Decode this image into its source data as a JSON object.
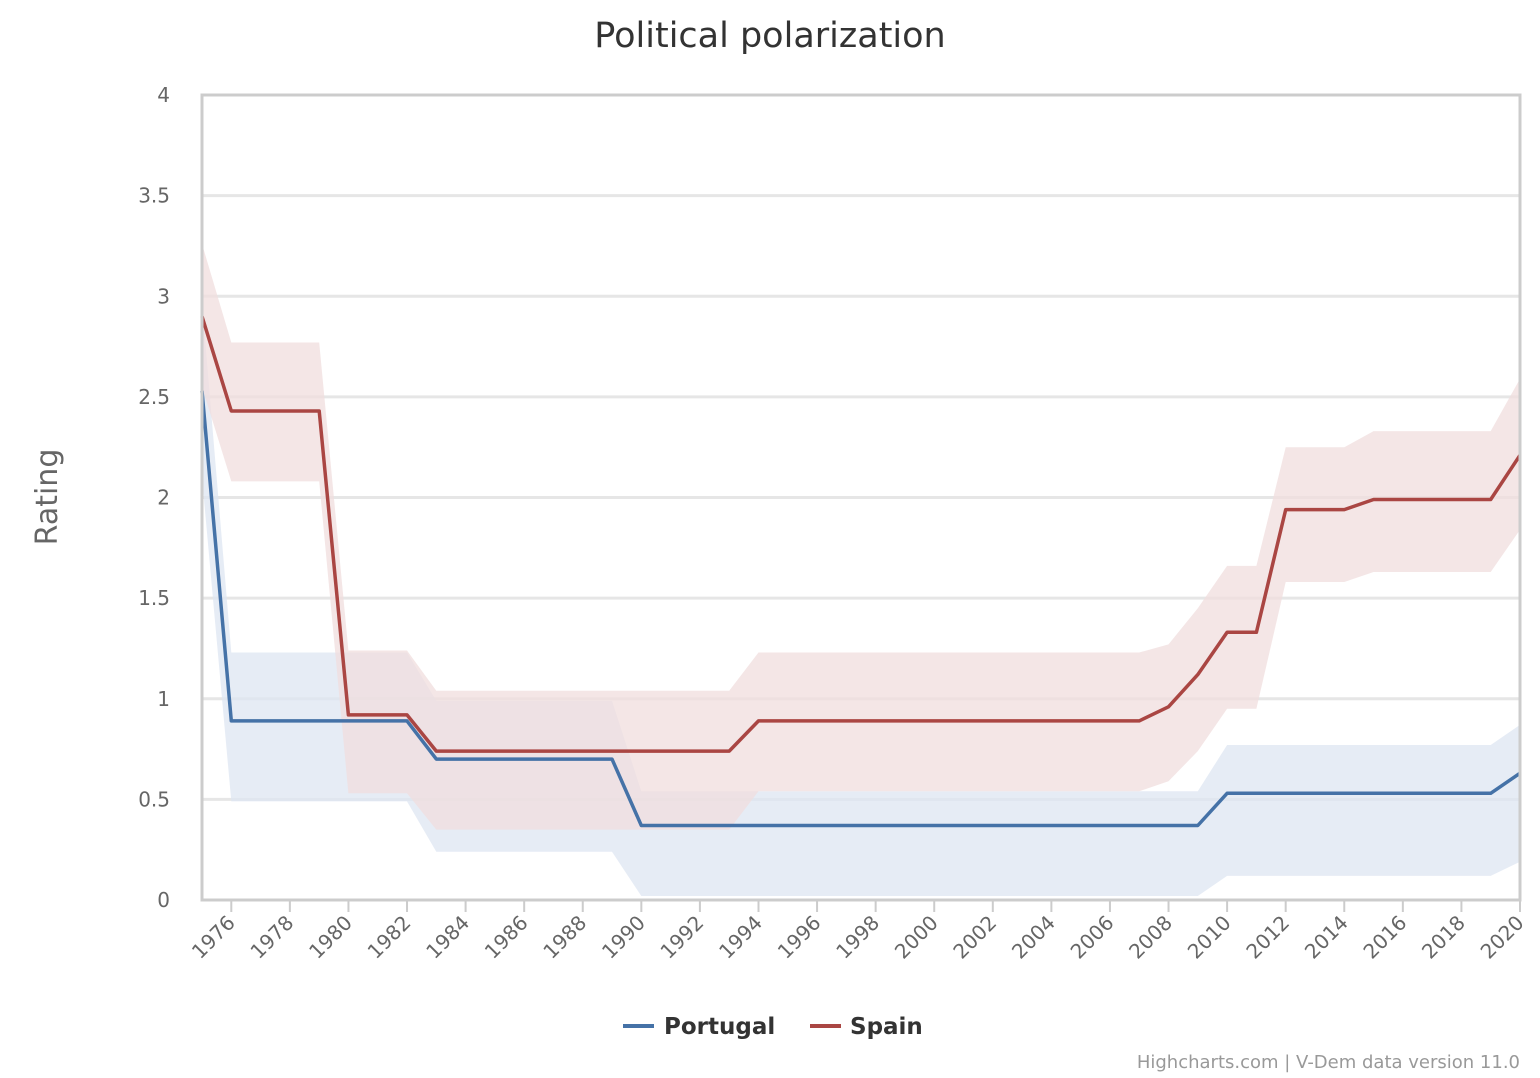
{
  "chart_data": {
    "type": "line",
    "title": "Political polarization",
    "ylabel": "Rating",
    "xlabel": "",
    "xlim": [
      1975,
      2020
    ],
    "ylim": [
      0,
      4
    ],
    "yticks": [
      0,
      0.5,
      1,
      1.5,
      2,
      2.5,
      3,
      3.5,
      4
    ],
    "xticks": [
      1976,
      1978,
      1980,
      1982,
      1984,
      1986,
      1988,
      1990,
      1992,
      1994,
      1996,
      1998,
      2000,
      2002,
      2004,
      2006,
      2008,
      2010,
      2012,
      2014,
      2016,
      2018,
      2020
    ],
    "grid": true,
    "legend": "bottom-center",
    "x": [
      1975,
      1976,
      1977,
      1978,
      1979,
      1980,
      1981,
      1982,
      1983,
      1984,
      1985,
      1986,
      1987,
      1988,
      1989,
      1990,
      1991,
      1992,
      1993,
      1994,
      1995,
      1996,
      1997,
      1998,
      1999,
      2000,
      2001,
      2002,
      2003,
      2004,
      2005,
      2006,
      2007,
      2008,
      2009,
      2010,
      2011,
      2012,
      2013,
      2014,
      2015,
      2016,
      2017,
      2018,
      2019,
      2020
    ],
    "series": [
      {
        "name": "Portugal",
        "color": "#4572a7",
        "band_color": "#dde6f1",
        "values": [
          2.53,
          0.89,
          0.89,
          0.89,
          0.89,
          0.89,
          0.89,
          0.89,
          0.7,
          0.7,
          0.7,
          0.7,
          0.7,
          0.7,
          0.7,
          0.37,
          0.37,
          0.37,
          0.37,
          0.37,
          0.37,
          0.37,
          0.37,
          0.37,
          0.37,
          0.37,
          0.37,
          0.37,
          0.37,
          0.37,
          0.37,
          0.37,
          0.37,
          0.37,
          0.37,
          0.53,
          0.53,
          0.53,
          0.53,
          0.53,
          0.53,
          0.53,
          0.53,
          0.53,
          0.53,
          0.63
        ],
        "lower": [
          2.1,
          0.49,
          0.49,
          0.49,
          0.49,
          0.49,
          0.49,
          0.49,
          0.24,
          0.24,
          0.24,
          0.24,
          0.24,
          0.24,
          0.24,
          0.02,
          0.02,
          0.02,
          0.02,
          0.02,
          0.02,
          0.02,
          0.02,
          0.02,
          0.02,
          0.02,
          0.02,
          0.02,
          0.02,
          0.02,
          0.02,
          0.02,
          0.02,
          0.02,
          0.02,
          0.12,
          0.12,
          0.12,
          0.12,
          0.12,
          0.12,
          0.12,
          0.12,
          0.12,
          0.12,
          0.19
        ],
        "upper": [
          2.97,
          1.23,
          1.23,
          1.23,
          1.23,
          1.23,
          1.23,
          1.23,
          0.99,
          0.99,
          0.99,
          0.99,
          0.99,
          0.99,
          0.99,
          0.54,
          0.54,
          0.54,
          0.54,
          0.54,
          0.54,
          0.54,
          0.54,
          0.54,
          0.54,
          0.54,
          0.54,
          0.54,
          0.54,
          0.54,
          0.54,
          0.54,
          0.54,
          0.54,
          0.54,
          0.77,
          0.77,
          0.77,
          0.77,
          0.77,
          0.77,
          0.77,
          0.77,
          0.77,
          0.77,
          0.87
        ]
      },
      {
        "name": "Spain",
        "color": "#aa4643",
        "band_color": "#f0dddd",
        "values": [
          2.9,
          2.43,
          2.43,
          2.43,
          2.43,
          0.92,
          0.92,
          0.92,
          0.74,
          0.74,
          0.74,
          0.74,
          0.74,
          0.74,
          0.74,
          0.74,
          0.74,
          0.74,
          0.74,
          0.89,
          0.89,
          0.89,
          0.89,
          0.89,
          0.89,
          0.89,
          0.89,
          0.89,
          0.89,
          0.89,
          0.89,
          0.89,
          0.89,
          0.96,
          1.12,
          1.33,
          1.33,
          1.94,
          1.94,
          1.94,
          1.99,
          1.99,
          1.99,
          1.99,
          1.99,
          2.21
        ],
        "lower": [
          2.55,
          2.08,
          2.08,
          2.08,
          2.08,
          0.53,
          0.53,
          0.53,
          0.35,
          0.35,
          0.35,
          0.35,
          0.35,
          0.35,
          0.35,
          0.35,
          0.35,
          0.35,
          0.35,
          0.54,
          0.54,
          0.54,
          0.54,
          0.54,
          0.54,
          0.54,
          0.54,
          0.54,
          0.54,
          0.54,
          0.54,
          0.54,
          0.54,
          0.59,
          0.74,
          0.95,
          0.95,
          1.58,
          1.58,
          1.58,
          1.63,
          1.63,
          1.63,
          1.63,
          1.63,
          1.84
        ],
        "upper": [
          3.26,
          2.77,
          2.77,
          2.77,
          2.77,
          1.24,
          1.24,
          1.24,
          1.04,
          1.04,
          1.04,
          1.04,
          1.04,
          1.04,
          1.04,
          1.04,
          1.04,
          1.04,
          1.04,
          1.23,
          1.23,
          1.23,
          1.23,
          1.23,
          1.23,
          1.23,
          1.23,
          1.23,
          1.23,
          1.23,
          1.23,
          1.23,
          1.23,
          1.27,
          1.45,
          1.66,
          1.66,
          2.25,
          2.25,
          2.25,
          2.33,
          2.33,
          2.33,
          2.33,
          2.33,
          2.59
        ]
      }
    ],
    "credits": "Highcharts.com | V-Dem data version 11.0"
  }
}
